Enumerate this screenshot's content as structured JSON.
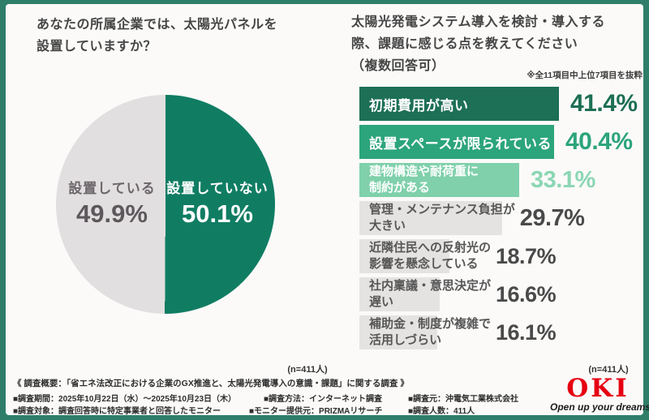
{
  "left_section": {
    "title_lines": [
      "あなたの所属企業では、太陽光パネルを",
      "設置していますか？"
    ],
    "n_label": "(n=411人)"
  },
  "right_section": {
    "title_lines": [
      "太陽光発電システム導入を検討・導入する",
      "際、課題に感じる点を教えてください",
      "（複数回答可）"
    ],
    "note": "※全11項目中上位7項目を抜粋",
    "n_label": "(n=411人)"
  },
  "chart_data": [
    {
      "type": "pie",
      "title": "あなたの所属企業では、太陽光パネルを設置していますか？",
      "n": "(n=411人)",
      "slices": [
        {
          "label": "設置していない",
          "value": 50.1,
          "pct": "50.1%",
          "color": "#107d63",
          "text_color": "#ffffff"
        },
        {
          "label": "設置している",
          "value": 49.9,
          "pct": "49.9%",
          "color": "#e2dfe0",
          "text_color": "#6d676b"
        }
      ],
      "start_angle_deg": 0,
      "direction": "clockwise"
    },
    {
      "type": "bar",
      "title": "太陽光発電システム導入を検討・導入する際、課題に感じる点を教えてください（複数回答可）",
      "note": "※全11項目中上位7項目を抜粋",
      "n": "(n=411人)",
      "orientation": "horizontal",
      "categories": [
        "初期費用が高い",
        "設置スペースが限られている",
        "建物構造や耐荷重に制約がある",
        "管理・メンテナンス負担が大きい",
        "近隣住民への反射光の影響を懸念している",
        "社内稟議・意思決定が遅い",
        "補助金・制度が複雑で活用しづらい"
      ],
      "values": [
        41.4,
        40.4,
        33.1,
        29.7,
        18.7,
        16.6,
        16.1
      ],
      "bars": [
        {
          "label_lines": [
            "初期費用が高い"
          ],
          "value": 41.4,
          "pct": "41.4%",
          "bar_color": "#1d6f55",
          "label_color": "#ffffff",
          "pct_color": "#1d6f55"
        },
        {
          "label_lines": [
            "設置スペースが限られている"
          ],
          "value": 40.4,
          "pct": "40.4%",
          "bar_color": "#2ca47c",
          "label_color": "#ffffff",
          "pct_color": "#2ca47c"
        },
        {
          "label_lines": [
            "建物構造や耐荷重に",
            "制約がある"
          ],
          "value": 33.1,
          "pct": "33.1%",
          "bar_color": "#7fd0ab",
          "label_color": "#ffffff",
          "pct_color": "#8bd6b3"
        },
        {
          "label_lines": [
            "管理・メンテナンス負担が",
            "大きい"
          ],
          "value": 29.7,
          "pct": "29.7%",
          "bar_color": "#e5e3e1",
          "label_color": "#575757",
          "pct_color": "#4a4a4a"
        },
        {
          "label_lines": [
            "近隣住民への反射光の",
            "影響を懸念している"
          ],
          "value": 18.7,
          "pct": "18.7%",
          "bar_color": "#e5e3e1",
          "label_color": "#575757",
          "pct_color": "#4a4a4a"
        },
        {
          "label_lines": [
            "社内稟議・意思決定が",
            "遅い"
          ],
          "value": 16.6,
          "pct": "16.6%",
          "bar_color": "#e5e3e1",
          "label_color": "#575757",
          "pct_color": "#4a4a4a"
        },
        {
          "label_lines": [
            "補助金・制度が複雑で",
            "活用しづらい"
          ],
          "value": 16.1,
          "pct": "16.1%",
          "bar_color": "#e5e3e1",
          "label_color": "#575757",
          "pct_color": "#4a4a4a"
        }
      ],
      "xlim": [
        0,
        41.4
      ]
    }
  ],
  "footer": {
    "summary": "《 調査概要：「省エネ法改正における企業のGX推進と、太陽光発電導入の意識・課題」に関する調査 》",
    "items": [
      "■調査期間：2025年10月22日（水）～2025年10月23日（木）",
      "■調査方法：インターネット調査",
      "■調査元：沖電気工業株式会社",
      "■調査対象：調査回答時に特定事業者と回答したモニター",
      "■モニター提供元：PRIZMAリサーチ",
      "■調査人数：411人"
    ]
  },
  "logo": {
    "text": "OKI",
    "tagline": "Open up your dreams",
    "color": "#e60012"
  },
  "colors": {
    "frame_border": "#2e7e6a",
    "card_bg": "#fbfaf9",
    "pie_green": "#107d63",
    "pie_gray": "#e2dfe0",
    "bar_dark_green": "#1d6f55",
    "bar_mid_green": "#2ca47c",
    "bar_light_green": "#7fd0ab",
    "bar_gray": "#e5e3e1",
    "logo_red": "#e60012"
  }
}
